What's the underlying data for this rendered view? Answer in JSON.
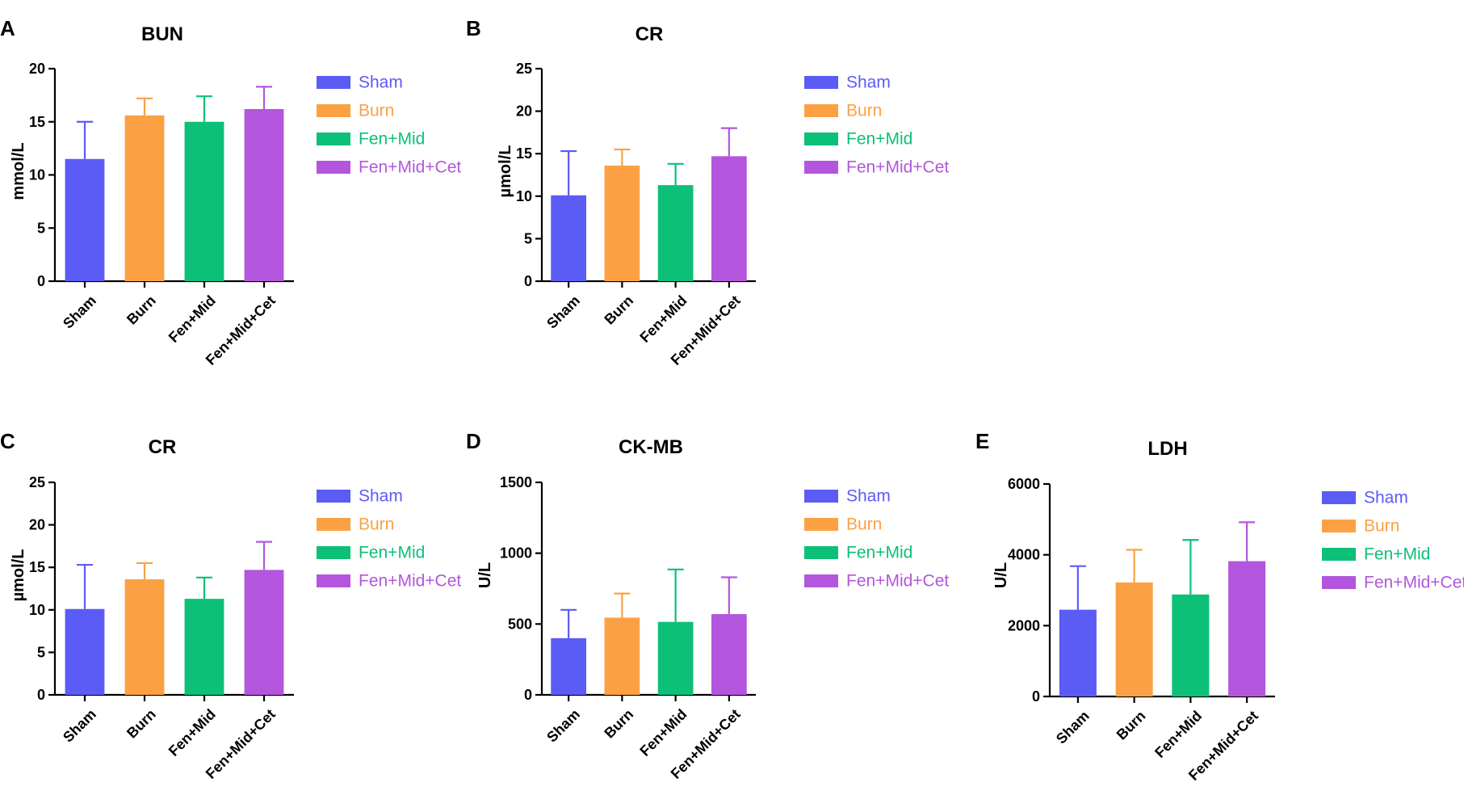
{
  "colors": {
    "Sham": "#5b5bf5",
    "Burn": "#fba144",
    "Fen+Mid": "#0cc077",
    "Fen+Mid+Cet": "#b356dd"
  },
  "chart_data": [
    {
      "panel": "A",
      "type": "bar",
      "title": "BUN",
      "ylabel": "mmol/L",
      "xlabel": "",
      "ylim": [
        0,
        20
      ],
      "yticks": [
        "0",
        "5",
        "10",
        "15",
        "20"
      ],
      "categories": [
        "Sham",
        "Burn",
        "Fen+Mid",
        "Fen+Mid+Cet"
      ],
      "values": [
        11.5,
        15.6,
        15.0,
        16.2
      ],
      "errors": [
        3.5,
        1.6,
        2.4,
        2.1
      ],
      "legend": [
        "Sham",
        "Burn",
        "Fen+Mid",
        "Fen+Mid+Cet"
      ]
    },
    {
      "panel": "B",
      "type": "bar",
      "title": "CR",
      "ylabel": "µmol/L",
      "xlabel": "",
      "ylim": [
        0,
        25
      ],
      "yticks": [
        "0",
        "5",
        "10",
        "15",
        "20",
        "25"
      ],
      "categories": [
        "Sham",
        "Burn",
        "Fen+Mid",
        "Fen+Mid+Cet"
      ],
      "values": [
        10.1,
        13.6,
        11.3,
        14.7
      ],
      "errors": [
        5.2,
        1.9,
        2.5,
        3.3
      ],
      "legend": [
        "Sham",
        "Burn",
        "Fen+Mid",
        "Fen+Mid+Cet"
      ]
    },
    {
      "panel": "C",
      "type": "bar",
      "title": "CR",
      "ylabel": "µmol/L",
      "xlabel": "",
      "ylim": [
        0,
        25
      ],
      "yticks": [
        "0",
        "5",
        "10",
        "15",
        "20",
        "25"
      ],
      "categories": [
        "Sham",
        "Burn",
        "Fen+Mid",
        "Fen+Mid+Cet"
      ],
      "values": [
        10.1,
        13.6,
        11.3,
        14.7
      ],
      "errors": [
        5.2,
        1.9,
        2.5,
        3.3
      ],
      "legend": [
        "Sham",
        "Burn",
        "Fen+Mid",
        "Fen+Mid+Cet"
      ]
    },
    {
      "panel": "D",
      "type": "bar",
      "title": "CK-MB",
      "ylabel": "U/L",
      "xlabel": "",
      "ylim": [
        0,
        1500
      ],
      "yticks": [
        "0",
        "500",
        "1000",
        "1500"
      ],
      "categories": [
        "Sham",
        "Burn",
        "Fen+Mid",
        "Fen+Mid+Cet"
      ],
      "values": [
        400,
        545,
        515,
        570
      ],
      "errors": [
        200,
        170,
        370,
        260
      ],
      "legend": [
        "Sham",
        "Burn",
        "Fen+Mid",
        "Fen+Mid+Cet"
      ]
    },
    {
      "panel": "E",
      "type": "bar",
      "title": "LDH",
      "ylabel": "U/L",
      "xlabel": "",
      "ylim": [
        0,
        6000
      ],
      "yticks": [
        "0",
        "2000",
        "4000",
        "6000"
      ],
      "categories": [
        "Sham",
        "Burn",
        "Fen+Mid",
        "Fen+Mid+Cet"
      ],
      "values": [
        2450,
        3220,
        2880,
        3820
      ],
      "errors": [
        1230,
        920,
        1540,
        1100
      ],
      "legend": [
        "Sham",
        "Burn",
        "Fen+Mid",
        "Fen+Mid+Cet"
      ]
    }
  ]
}
